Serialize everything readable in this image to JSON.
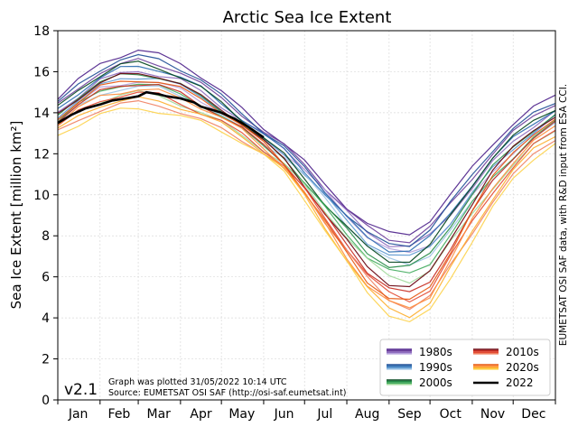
{
  "chart_data": {
    "type": "line",
    "title": "Arctic Sea Ice Extent",
    "ylabel": "Sea Ice Extent [million km²]",
    "xlabel": "",
    "xlim": [
      0,
      365
    ],
    "ylim": [
      0,
      18
    ],
    "grid": true,
    "legend_position": "bottom-right",
    "y_ticks": [
      0,
      2,
      4,
      6,
      8,
      10,
      12,
      14,
      16,
      18
    ],
    "month_labels": [
      "Jan",
      "Feb",
      "Mar",
      "Apr",
      "May",
      "Jun",
      "Jul",
      "Aug",
      "Sep",
      "Oct",
      "Nov",
      "Dec"
    ],
    "month_label_days": [
      15,
      45,
      74,
      105,
      135,
      166,
      196,
      227,
      258,
      288,
      319,
      349
    ],
    "x_tick_days": [
      0,
      31,
      59,
      90,
      120,
      151,
      181,
      212,
      243,
      273,
      304,
      334,
      365
    ],
    "series": [
      {
        "name": "1980s",
        "color": "#6a3d9a",
        "colors": [
          "#4b1f8a",
          "#6a3d9a",
          "#8e6cbf",
          "#b5a0da"
        ],
        "x": [
          0,
          15,
          31,
          46,
          59,
          74,
          90,
          105,
          120,
          135,
          151,
          166,
          181,
          196,
          212,
          227,
          243,
          258,
          273,
          288,
          304,
          319,
          334,
          349,
          365
        ],
        "values": [
          14.2,
          15.0,
          15.8,
          16.1,
          16.3,
          16.1,
          15.8,
          15.2,
          14.5,
          13.8,
          13.0,
          12.3,
          11.4,
          10.3,
          9.2,
          8.3,
          7.7,
          7.6,
          8.2,
          9.3,
          10.6,
          11.8,
          12.8,
          13.6,
          14.3
        ]
      },
      {
        "name": "1990s",
        "color": "#2b6bb0",
        "colors": [
          "#1f4e96",
          "#2b6bb0",
          "#5b97cf",
          "#9cc4e6"
        ],
        "x": [
          0,
          15,
          31,
          46,
          59,
          74,
          90,
          105,
          120,
          135,
          151,
          166,
          181,
          196,
          212,
          227,
          243,
          258,
          273,
          288,
          304,
          319,
          334,
          349,
          365
        ],
        "values": [
          14.0,
          14.8,
          15.5,
          15.9,
          16.0,
          15.9,
          15.5,
          15.0,
          14.3,
          13.6,
          12.8,
          12.1,
          11.1,
          10.0,
          8.8,
          7.8,
          7.2,
          7.1,
          7.7,
          8.9,
          10.3,
          11.5,
          12.5,
          13.3,
          14.0
        ]
      },
      {
        "name": "2000s",
        "color": "#238b45",
        "colors": [
          "#00441b",
          "#238b45",
          "#41ab5d",
          "#a1d99b"
        ],
        "x": [
          0,
          15,
          31,
          46,
          59,
          74,
          90,
          105,
          120,
          135,
          151,
          166,
          181,
          196,
          212,
          227,
          243,
          258,
          273,
          288,
          304,
          319,
          334,
          349,
          365
        ],
        "values": [
          13.8,
          14.6,
          15.2,
          15.6,
          15.7,
          15.5,
          15.1,
          14.6,
          14.0,
          13.3,
          12.5,
          11.7,
          10.6,
          9.4,
          8.2,
          7.1,
          6.4,
          6.3,
          6.9,
          8.3,
          9.8,
          11.1,
          12.1,
          13.0,
          13.7
        ]
      },
      {
        "name": "2010s",
        "color": "#c62a1e",
        "colors": [
          "#67000d",
          "#c62a1e",
          "#e34a33",
          "#f08060"
        ],
        "x": [
          0,
          15,
          31,
          46,
          59,
          74,
          90,
          105,
          120,
          135,
          151,
          166,
          181,
          196,
          212,
          227,
          243,
          258,
          273,
          288,
          304,
          319,
          334,
          349,
          365
        ],
        "values": [
          13.5,
          14.2,
          14.8,
          15.1,
          15.2,
          15.1,
          14.7,
          14.2,
          13.7,
          13.1,
          12.3,
          11.5,
          10.3,
          8.9,
          7.5,
          6.2,
          5.3,
          5.0,
          5.6,
          7.2,
          8.9,
          10.4,
          11.6,
          12.6,
          13.3
        ]
      },
      {
        "name": "2020s",
        "color": "#fd8d3c",
        "colors": [
          "#e6550d",
          "#fd8d3c",
          "#fdae2b",
          "#fdd24a"
        ],
        "x": [
          0,
          15,
          31,
          46,
          59,
          74,
          90,
          105,
          120,
          135,
          151,
          166,
          181,
          196,
          212,
          227,
          243,
          258,
          273,
          288,
          304,
          319,
          334,
          349,
          365
        ],
        "values": [
          13.3,
          14.0,
          14.6,
          14.8,
          14.9,
          14.8,
          14.5,
          14.1,
          13.6,
          13.0,
          12.2,
          11.3,
          10.0,
          8.5,
          6.9,
          5.5,
          4.6,
          4.3,
          4.9,
          6.6,
          8.5,
          10.1,
          11.4,
          12.4,
          13.1
        ]
      },
      {
        "name": "2022",
        "color": "#000000",
        "x": [
          0,
          10,
          20,
          31,
          40,
          50,
          59,
          65,
          74,
          80,
          90,
          100,
          105,
          110,
          120,
          130,
          135,
          140,
          151
        ],
        "values": [
          13.5,
          13.9,
          14.2,
          14.4,
          14.6,
          14.7,
          14.8,
          15.0,
          14.9,
          14.8,
          14.7,
          14.5,
          14.3,
          14.2,
          14.0,
          13.7,
          13.5,
          13.3,
          12.8
        ]
      }
    ]
  },
  "labels": {
    "version": "v2.1",
    "plotted_note": "Graph was plotted 31/05/2022 10:14 UTC",
    "source_note": "Source: EUMETSAT OSI SAF (http://osi-saf.eumetsat.int)",
    "side_note": "EUMETSAT OSI SAF data, with R&D input from ESA CCI."
  },
  "legend": {
    "columns": [
      [
        "1980s",
        "1990s",
        "2000s"
      ],
      [
        "2010s",
        "2020s",
        "2022"
      ]
    ]
  }
}
